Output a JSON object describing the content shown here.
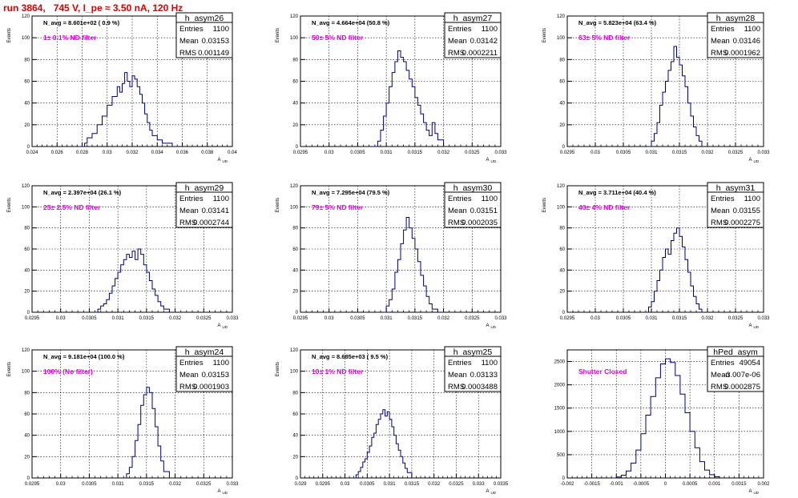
{
  "canvas": {
    "title": "run 3864,   745 V, I_pe ≈ 3.50 nA, 120 Hz"
  },
  "chart_data": [
    {
      "type": "bar",
      "histogram": "h_asym26",
      "title": "h_asym26",
      "xlabel": "A_UD",
      "ylabel": "Events",
      "xlim": [
        0.024,
        0.04
      ],
      "ylim": [
        0,
        120
      ],
      "xticks": [
        "0.024",
        "0.026",
        "0.028",
        "0.03",
        "0.032",
        "0.034",
        "0.036",
        "0.038",
        "0.04"
      ],
      "yticks": [
        "0",
        "20",
        "40",
        "60",
        "80",
        "100",
        "120"
      ],
      "grid": true,
      "stats": {
        "entries_label": "Entries",
        "entries": "1100",
        "mean_label": "Mean",
        "mean": "0.03153",
        "rms_label": "RMS",
        "rms": "0.001149"
      },
      "navg": "N_avg = 8.601e+02 ( 0.9 %)",
      "annotation": "1± 0.1% ND filter",
      "bins": [
        [
          0.0278,
          0
        ],
        [
          0.0282,
          3
        ],
        [
          0.0284,
          8
        ],
        [
          0.0288,
          12
        ],
        [
          0.0292,
          20
        ],
        [
          0.0296,
          28
        ],
        [
          0.03,
          38
        ],
        [
          0.0304,
          46
        ],
        [
          0.0308,
          55
        ],
        [
          0.031,
          50
        ],
        [
          0.0312,
          58
        ],
        [
          0.0314,
          68
        ],
        [
          0.0316,
          60
        ],
        [
          0.0318,
          55
        ],
        [
          0.032,
          65
        ],
        [
          0.0322,
          62
        ],
        [
          0.0324,
          55
        ],
        [
          0.0326,
          48
        ],
        [
          0.0328,
          40
        ],
        [
          0.033,
          30
        ],
        [
          0.0332,
          22
        ],
        [
          0.0334,
          15
        ],
        [
          0.0336,
          10
        ],
        [
          0.034,
          6
        ],
        [
          0.0344,
          3
        ],
        [
          0.0352,
          0
        ]
      ]
    },
    {
      "type": "bar",
      "histogram": "h_asym27",
      "title": "h_asym27",
      "xlabel": "A_UD",
      "ylabel": "Events",
      "xlim": [
        0.0295,
        0.033
      ],
      "ylim": [
        0,
        120
      ],
      "xticks": [
        "0.0295",
        "0.03",
        "0.0305",
        "0.031",
        "0.0315",
        "0.032",
        "0.0325",
        "0.033"
      ],
      "yticks": [
        "0",
        "20",
        "40",
        "60",
        "80",
        "100",
        "120"
      ],
      "grid": true,
      "stats": {
        "entries_label": "Entries",
        "entries": "1100",
        "mean_label": "Mean",
        "mean": "0.03142",
        "rms_label": "RMS",
        "rms": "0.0002211"
      },
      "navg": "N_avg = 4.664e+04 (50.8 %)",
      "annotation": "50± 5% ND filter",
      "bins": [
        [
          0.03075,
          0
        ],
        [
          0.03085,
          5
        ],
        [
          0.0309,
          15
        ],
        [
          0.03095,
          28
        ],
        [
          0.031,
          40
        ],
        [
          0.03105,
          55
        ],
        [
          0.0311,
          68
        ],
        [
          0.03115,
          78
        ],
        [
          0.0312,
          88
        ],
        [
          0.03125,
          82
        ],
        [
          0.0313,
          78
        ],
        [
          0.03135,
          70
        ],
        [
          0.0314,
          62
        ],
        [
          0.03145,
          55
        ],
        [
          0.0315,
          45
        ],
        [
          0.03155,
          38
        ],
        [
          0.0316,
          30
        ],
        [
          0.03165,
          22
        ],
        [
          0.0317,
          15
        ],
        [
          0.03175,
          10
        ],
        [
          0.0318,
          22
        ],
        [
          0.03185,
          12
        ],
        [
          0.0319,
          6
        ],
        [
          0.032,
          0
        ]
      ]
    },
    {
      "type": "bar",
      "histogram": "h_asym28",
      "title": "h_asym28",
      "xlabel": "A_UD",
      "ylabel": "Events",
      "xlim": [
        0.0295,
        0.033
      ],
      "ylim": [
        0,
        120
      ],
      "xticks": [
        "0.0295",
        "0.03",
        "0.0305",
        "0.031",
        "0.0315",
        "0.032",
        "0.0325",
        "0.033"
      ],
      "yticks": [
        "0",
        "20",
        "40",
        "60",
        "80",
        "100",
        "120"
      ],
      "grid": true,
      "stats": {
        "entries_label": "Entries",
        "entries": "1100",
        "mean_label": "Mean",
        "mean": "0.03146",
        "rms_label": "RMS",
        "rms": "0.0001962"
      },
      "navg": "N_avg = 5.823e+04 (63.4 %)",
      "annotation": "63± 5% ND filter",
      "bins": [
        [
          0.03095,
          0
        ],
        [
          0.031,
          5
        ],
        [
          0.03105,
          12
        ],
        [
          0.0311,
          22
        ],
        [
          0.03115,
          38
        ],
        [
          0.0312,
          50
        ],
        [
          0.03125,
          60
        ],
        [
          0.0313,
          70
        ],
        [
          0.03135,
          78
        ],
        [
          0.0314,
          92
        ],
        [
          0.03145,
          82
        ],
        [
          0.0315,
          75
        ],
        [
          0.03155,
          65
        ],
        [
          0.0316,
          55
        ],
        [
          0.03165,
          40
        ],
        [
          0.0317,
          28
        ],
        [
          0.03175,
          18
        ],
        [
          0.0318,
          10
        ],
        [
          0.03185,
          5
        ],
        [
          0.0319,
          0
        ]
      ]
    },
    {
      "type": "bar",
      "histogram": "h_asym29",
      "title": "h_asym29",
      "xlabel": "A_UD",
      "ylabel": "Events",
      "xlim": [
        0.0295,
        0.033
      ],
      "ylim": [
        0,
        120
      ],
      "xticks": [
        "0.0295",
        "0.03",
        "0.0305",
        "0.031",
        "0.0315",
        "0.032",
        "0.0325",
        "0.033"
      ],
      "yticks": [
        "0",
        "20",
        "40",
        "60",
        "80",
        "100",
        "120"
      ],
      "grid": true,
      "stats": {
        "entries_label": "Entries",
        "entries": "1100",
        "mean_label": "Mean",
        "mean": "0.03141",
        "rms_label": "RMS",
        "rms": "0.0002744"
      },
      "navg": "N_avg = 2.397e+04 (26.1 %)",
      "annotation": "25± 2.5% ND filter",
      "bins": [
        [
          0.0306,
          0
        ],
        [
          0.03065,
          3
        ],
        [
          0.0307,
          6
        ],
        [
          0.03075,
          8
        ],
        [
          0.0308,
          12
        ],
        [
          0.03085,
          18
        ],
        [
          0.0309,
          25
        ],
        [
          0.03095,
          32
        ],
        [
          0.031,
          38
        ],
        [
          0.03105,
          45
        ],
        [
          0.0311,
          50
        ],
        [
          0.03115,
          55
        ],
        [
          0.0312,
          52
        ],
        [
          0.03125,
          58
        ],
        [
          0.0313,
          50
        ],
        [
          0.03135,
          60
        ],
        [
          0.0314,
          55
        ],
        [
          0.03145,
          45
        ],
        [
          0.0315,
          38
        ],
        [
          0.03155,
          30
        ],
        [
          0.0316,
          22
        ],
        [
          0.03165,
          16
        ],
        [
          0.0317,
          10
        ],
        [
          0.03175,
          6
        ],
        [
          0.0318,
          3
        ],
        [
          0.0319,
          0
        ]
      ]
    },
    {
      "type": "bar",
      "histogram": "h_asym30",
      "title": "h_asym30",
      "xlabel": "A_UD",
      "ylabel": "Events",
      "xlim": [
        0.0295,
        0.033
      ],
      "ylim": [
        0,
        120
      ],
      "xticks": [
        "0.0295",
        "0.03",
        "0.0305",
        "0.031",
        "0.0315",
        "0.032",
        "0.0325",
        "0.033"
      ],
      "yticks": [
        "0",
        "20",
        "40",
        "60",
        "80",
        "100",
        "120"
      ],
      "grid": true,
      "stats": {
        "entries_label": "Entries",
        "entries": "1100",
        "mean_label": "Mean",
        "mean": "0.03151",
        "rms_label": "RMS",
        "rms": "0.0002035"
      },
      "navg": "N_avg = 7.295e+04 (79.5 %)",
      "annotation": "79± 5% ND filter",
      "bins": [
        [
          0.03095,
          0
        ],
        [
          0.031,
          6
        ],
        [
          0.03105,
          12
        ],
        [
          0.0311,
          22
        ],
        [
          0.03115,
          38
        ],
        [
          0.0312,
          50
        ],
        [
          0.03125,
          65
        ],
        [
          0.0313,
          78
        ],
        [
          0.03135,
          90
        ],
        [
          0.0314,
          80
        ],
        [
          0.03145,
          70
        ],
        [
          0.0315,
          60
        ],
        [
          0.03155,
          48
        ],
        [
          0.0316,
          35
        ],
        [
          0.03165,
          25
        ],
        [
          0.0317,
          15
        ],
        [
          0.03175,
          8
        ],
        [
          0.0318,
          3
        ],
        [
          0.0319,
          0
        ]
      ]
    },
    {
      "type": "bar",
      "histogram": "h_asym31",
      "title": "h_asym31",
      "xlabel": "A_UD",
      "ylabel": "Events",
      "xlim": [
        0.0295,
        0.033
      ],
      "ylim": [
        0,
        120
      ],
      "xticks": [
        "0.0295",
        "0.03",
        "0.0305",
        "0.031",
        "0.0315",
        "0.032",
        "0.0325",
        "0.033"
      ],
      "yticks": [
        "0",
        "20",
        "40",
        "60",
        "80",
        "100",
        "120"
      ],
      "grid": true,
      "stats": {
        "entries_label": "Entries",
        "entries": "1100",
        "mean_label": "Mean",
        "mean": "0.03155",
        "rms_label": "RMS",
        "rms": "0.0002275"
      },
      "navg": "N_avg = 3.711e+04 (40.4 %)",
      "annotation": "40± 4% ND filter",
      "bins": [
        [
          0.0309,
          0
        ],
        [
          0.03095,
          5
        ],
        [
          0.031,
          10
        ],
        [
          0.03105,
          20
        ],
        [
          0.0311,
          30
        ],
        [
          0.03115,
          40
        ],
        [
          0.0312,
          52
        ],
        [
          0.03125,
          60
        ],
        [
          0.0313,
          55
        ],
        [
          0.03135,
          68
        ],
        [
          0.0314,
          75
        ],
        [
          0.03145,
          80
        ],
        [
          0.0315,
          72
        ],
        [
          0.03155,
          62
        ],
        [
          0.0316,
          50
        ],
        [
          0.03165,
          38
        ],
        [
          0.0317,
          25
        ],
        [
          0.03175,
          15
        ],
        [
          0.0318,
          8
        ],
        [
          0.03185,
          3
        ],
        [
          0.0319,
          0
        ]
      ]
    },
    {
      "type": "bar",
      "histogram": "h_asym24",
      "title": "h_asym24",
      "xlabel": "A_UD",
      "ylabel": "Events",
      "xlim": [
        0.0295,
        0.033
      ],
      "ylim": [
        0,
        120
      ],
      "xticks": [
        "0.0295",
        "0.03",
        "0.0305",
        "0.031",
        "0.0315",
        "0.032",
        "0.0325",
        "0.033"
      ],
      "yticks": [
        "0",
        "20",
        "40",
        "60",
        "80",
        "100",
        "120"
      ],
      "grid": true,
      "stats": {
        "entries_label": "Entries",
        "entries": "1100",
        "mean_label": "Mean",
        "mean": "0.03153",
        "rms_label": "RMS",
        "rms": "0.0001903"
      },
      "navg": "N_avg = 9.181e+04 (100.0 %)",
      "annotation": "100% (No filter)",
      "bins": [
        [
          0.0311,
          0
        ],
        [
          0.03115,
          4
        ],
        [
          0.0312,
          10
        ],
        [
          0.03125,
          20
        ],
        [
          0.0313,
          35
        ],
        [
          0.03135,
          50
        ],
        [
          0.0314,
          68
        ],
        [
          0.03145,
          78
        ],
        [
          0.0315,
          85
        ],
        [
          0.03155,
          80
        ],
        [
          0.0316,
          65
        ],
        [
          0.03165,
          48
        ],
        [
          0.0317,
          30
        ],
        [
          0.03175,
          16
        ],
        [
          0.0318,
          6
        ],
        [
          0.0319,
          0
        ]
      ]
    },
    {
      "type": "bar",
      "histogram": "h_asym25",
      "title": "h_asym25",
      "xlabel": "A_UD",
      "ylabel": "Events",
      "xlim": [
        0.029,
        0.0335
      ],
      "ylim": [
        0,
        120
      ],
      "xticks": [
        "0.029",
        "0.0295",
        "0.03",
        "0.0305",
        "0.031",
        "0.0315",
        "0.032",
        "0.0325",
        "0.033",
        "0.0335"
      ],
      "yticks": [
        "0",
        "20",
        "40",
        "60",
        "80",
        "100",
        "120"
      ],
      "grid": true,
      "stats": {
        "entries_label": "Entries",
        "entries": "1100",
        "mean_label": "Mean",
        "mean": "0.03133",
        "rms_label": "RMS",
        "rms": "0.0003488"
      },
      "navg": "N_avg = 8.685e+03 ( 9.5 %)",
      "annotation": "10± 1% ND filter",
      "bins": [
        [
          0.0302,
          0
        ],
        [
          0.03025,
          3
        ],
        [
          0.0303,
          6
        ],
        [
          0.03035,
          10
        ],
        [
          0.0304,
          15
        ],
        [
          0.03045,
          18
        ],
        [
          0.0305,
          24
        ],
        [
          0.03055,
          30
        ],
        [
          0.0306,
          38
        ],
        [
          0.03065,
          42
        ],
        [
          0.0307,
          50
        ],
        [
          0.03075,
          55
        ],
        [
          0.0308,
          60
        ],
        [
          0.03085,
          64
        ],
        [
          0.0309,
          58
        ],
        [
          0.03095,
          62
        ],
        [
          0.031,
          55
        ],
        [
          0.03105,
          48
        ],
        [
          0.0311,
          40
        ],
        [
          0.03115,
          32
        ],
        [
          0.0312,
          26
        ],
        [
          0.03125,
          20
        ],
        [
          0.0313,
          14
        ],
        [
          0.03135,
          9
        ],
        [
          0.0314,
          5
        ],
        [
          0.0315,
          0
        ]
      ]
    },
    {
      "type": "bar",
      "histogram": "hPed_asym",
      "title": "hPed_asym",
      "xlabel": "A_UD",
      "ylabel": "",
      "xlim": [
        -0.002,
        0.002
      ],
      "ylim": [
        0,
        2750
      ],
      "xticks": [
        "-0.002",
        "-0.0015",
        "-0.001",
        "-0.0005",
        "0",
        "0.0005",
        "0.001",
        "0.0015",
        "0.002"
      ],
      "yticks": [
        "0",
        "500",
        "1000",
        "1500",
        "2000",
        "2500"
      ],
      "grid": true,
      "stats": {
        "entries_label": "Entries",
        "entries": "49054",
        "mean_label": "Mean",
        "mean": "-3.007e-06",
        "rms_label": "RMS",
        "rms": "0.0002875"
      },
      "navg": "",
      "annotation": "Shutter Closed",
      "bins": [
        [
          -0.0011,
          0
        ],
        [
          -0.001,
          20
        ],
        [
          -0.0009,
          60
        ],
        [
          -0.0008,
          150
        ],
        [
          -0.0007,
          320
        ],
        [
          -0.0006,
          600
        ],
        [
          -0.0005,
          950
        ],
        [
          -0.0004,
          1350
        ],
        [
          -0.0003,
          1750
        ],
        [
          -0.0002,
          2150
        ],
        [
          -0.0001,
          2450
        ],
        [
          0.0,
          2560
        ],
        [
          0.0001,
          2480
        ],
        [
          0.0002,
          2200
        ],
        [
          0.0003,
          1800
        ],
        [
          0.0004,
          1400
        ],
        [
          0.0005,
          1000
        ],
        [
          0.0006,
          650
        ],
        [
          0.0007,
          350
        ],
        [
          0.0008,
          170
        ],
        [
          0.0009,
          70
        ],
        [
          0.001,
          25
        ],
        [
          0.0011,
          0
        ]
      ]
    }
  ]
}
